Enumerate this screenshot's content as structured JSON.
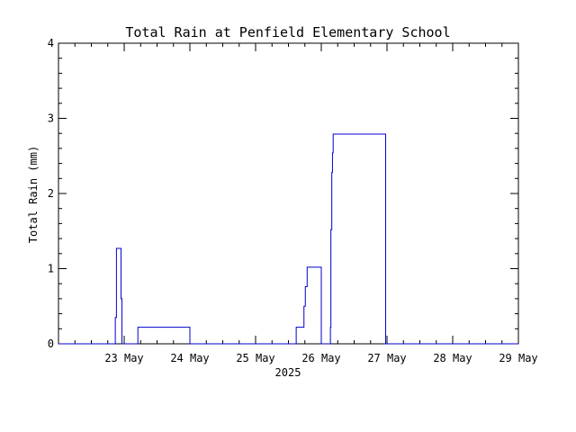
{
  "chart_data": {
    "type": "line",
    "title": "Total Rain at Penfield Elementary School",
    "ylabel": "Total Rain (mm)",
    "xlabel": "2025",
    "ylim": [
      0,
      4
    ],
    "xlim": [
      "2025-05-22T00:00",
      "2025-05-29T00:00"
    ],
    "yticks": [
      "0",
      "1",
      "2",
      "3",
      "4"
    ],
    "xticks": [
      {
        "label": "23 May",
        "date": "2025-05-23T00:00"
      },
      {
        "label": "24 May",
        "date": "2025-05-24T00:00"
      },
      {
        "label": "25 May",
        "date": "2025-05-25T00:00"
      },
      {
        "label": "26 May",
        "date": "2025-05-26T00:00"
      },
      {
        "label": "27 May",
        "date": "2025-05-27T00:00"
      },
      {
        "label": "28 May",
        "date": "2025-05-28T00:00"
      },
      {
        "label": "29 May",
        "date": "2025-05-29T00:00"
      }
    ],
    "grid": false,
    "line_color": "#0000cc",
    "series": [
      {
        "points": [
          [
            "2025-05-22T00:00",
            0
          ],
          [
            "2025-05-22T20:45",
            0
          ],
          [
            "2025-05-22T20:45",
            0.35
          ],
          [
            "2025-05-22T21:10",
            0.35
          ],
          [
            "2025-05-22T21:10",
            1.27
          ],
          [
            "2025-05-22T22:50",
            1.27
          ],
          [
            "2025-05-22T22:50",
            0.6
          ],
          [
            "2025-05-22T23:10",
            0.6
          ],
          [
            "2025-05-22T23:10",
            0
          ],
          [
            "2025-05-23T05:00",
            0
          ],
          [
            "2025-05-23T05:00",
            0.22
          ],
          [
            "2025-05-24T00:00",
            0.22
          ],
          [
            "2025-05-24T00:00",
            0
          ],
          [
            "2025-05-25T14:50",
            0
          ],
          [
            "2025-05-25T14:50",
            0.22
          ],
          [
            "2025-05-25T17:40",
            0.22
          ],
          [
            "2025-05-25T17:40",
            0.5
          ],
          [
            "2025-05-25T18:10",
            0.5
          ],
          [
            "2025-05-25T18:10",
            0.76
          ],
          [
            "2025-05-25T18:50",
            0.76
          ],
          [
            "2025-05-25T18:50",
            1.02
          ],
          [
            "2025-05-26T00:00",
            1.02
          ],
          [
            "2025-05-26T00:00",
            0
          ],
          [
            "2025-05-26T03:20",
            0
          ],
          [
            "2025-05-26T03:20",
            0.22
          ],
          [
            "2025-05-26T03:30",
            0.22
          ],
          [
            "2025-05-26T03:30",
            1.52
          ],
          [
            "2025-05-26T03:50",
            1.52
          ],
          [
            "2025-05-26T03:50",
            2.28
          ],
          [
            "2025-05-26T04:05",
            2.28
          ],
          [
            "2025-05-26T04:05",
            2.54
          ],
          [
            "2025-05-26T04:20",
            2.54
          ],
          [
            "2025-05-26T04:20",
            2.79
          ],
          [
            "2025-05-26T23:30",
            2.79
          ],
          [
            "2025-05-26T23:30",
            0
          ],
          [
            "2025-05-29T00:00",
            0
          ]
        ]
      }
    ]
  }
}
